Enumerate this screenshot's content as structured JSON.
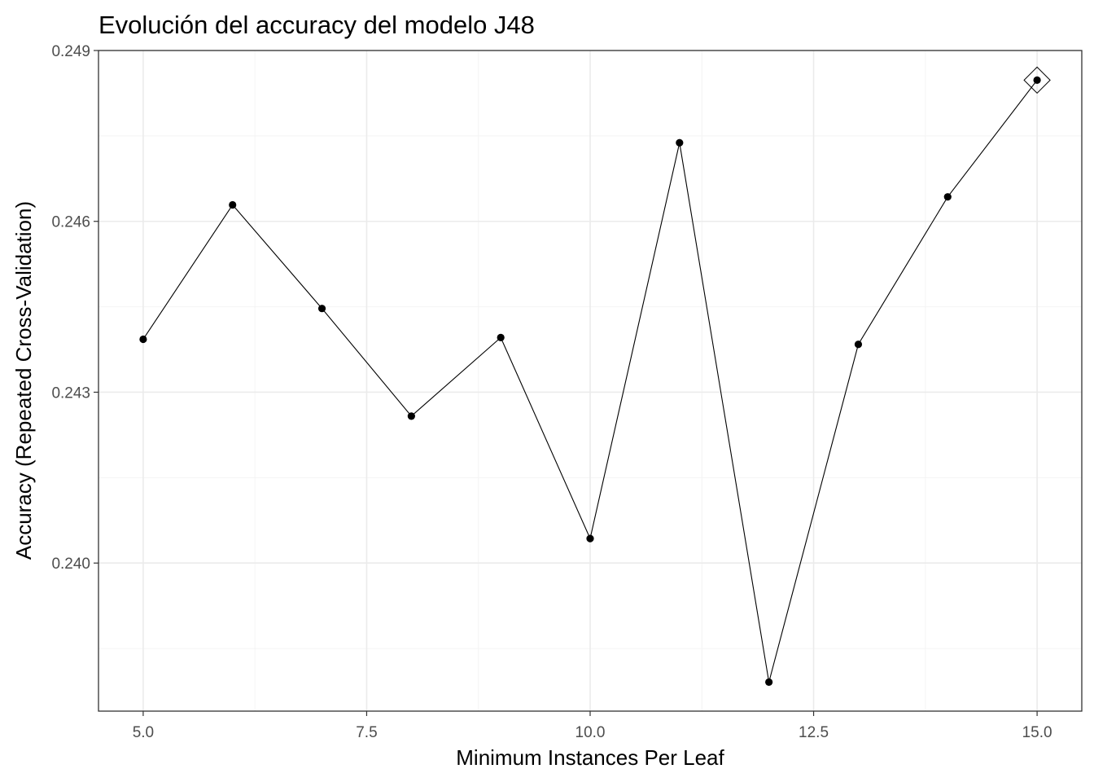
{
  "chart_data": {
    "type": "line",
    "title": "Evolución del accuracy del modelo J48",
    "xlabel": "Minimum Instances Per Leaf",
    "ylabel": "Accuracy (Repeated Cross-Validation)",
    "xlim": [
      4.5,
      15.5
    ],
    "ylim": [
      0.2374,
      0.249
    ],
    "x_ticks": [
      5.0,
      7.5,
      10.0,
      12.5,
      15.0
    ],
    "x_tick_labels": [
      "5.0",
      "7.5",
      "10.0",
      "12.5",
      "15.0"
    ],
    "y_ticks": [
      0.24,
      0.243,
      0.246,
      0.249
    ],
    "y_tick_labels": [
      "0.240",
      "0.243",
      "0.246",
      "0.249"
    ],
    "grid": true,
    "legend": "none",
    "series": [
      {
        "x": [
          5,
          6,
          7,
          8,
          9,
          10,
          11,
          12,
          13,
          14,
          15
        ],
        "values": [
          0.24393,
          0.24629,
          0.24447,
          0.24258,
          0.24396,
          0.24043,
          0.24738,
          0.23791,
          0.24384,
          0.24643,
          0.24848
        ]
      }
    ],
    "best_point": {
      "x": 15,
      "y": 0.24848
    }
  }
}
